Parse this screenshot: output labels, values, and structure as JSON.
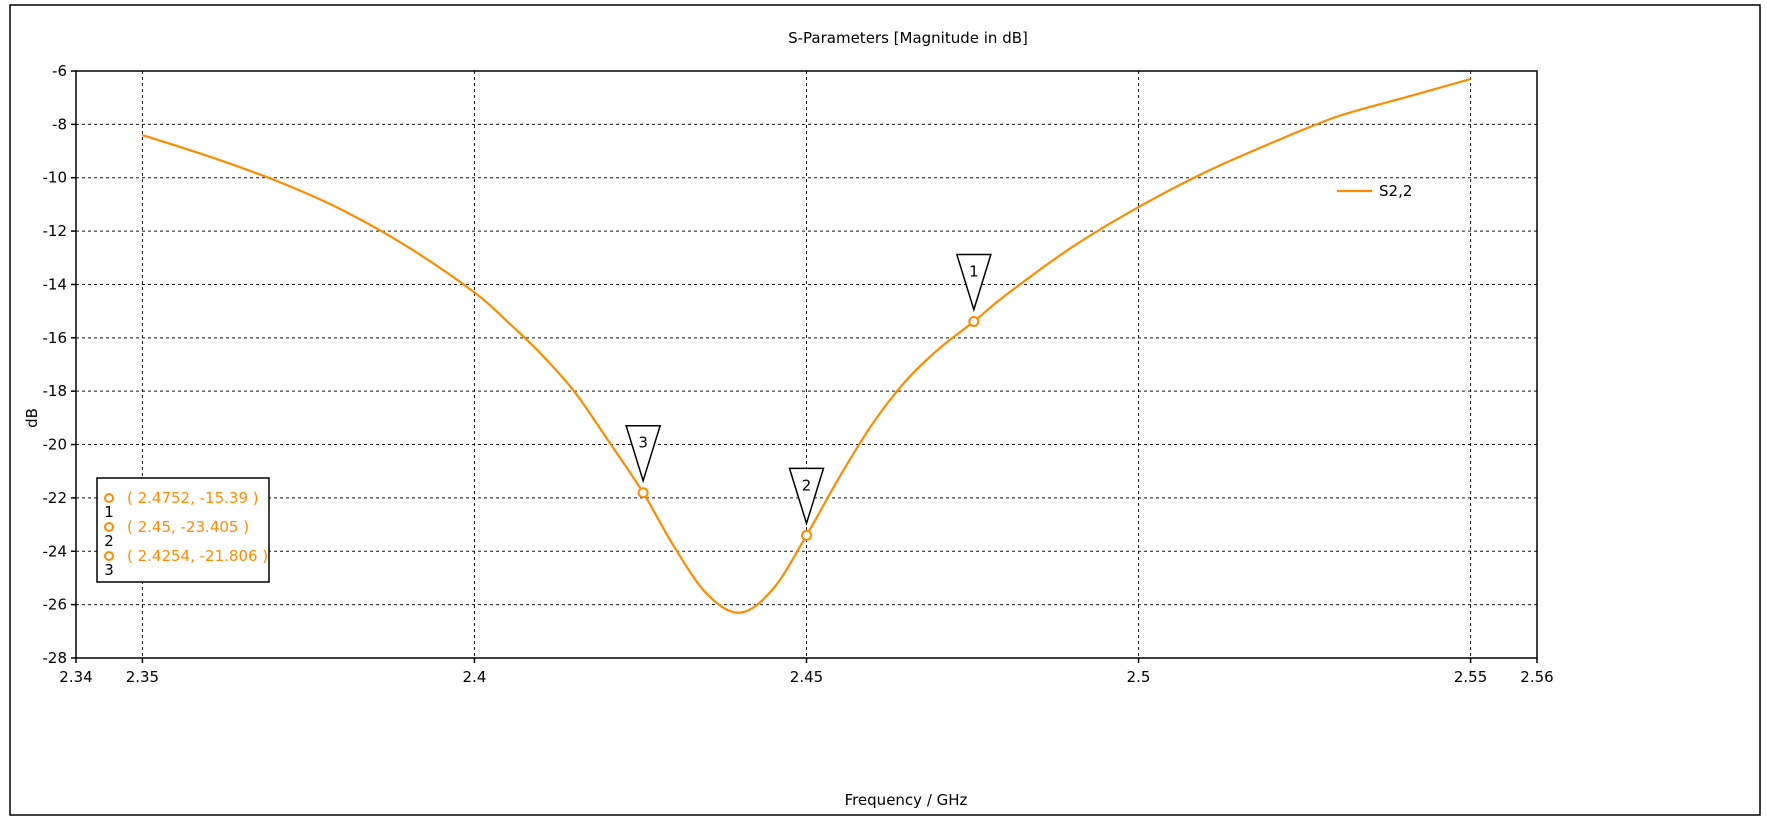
{
  "chart_data": {
    "type": "line",
    "title": "S-Parameters [Magnitude in dB]",
    "xlabel": "Frequency / GHz",
    "ylabel": "dB",
    "xlim": [
      2.34,
      2.56
    ],
    "ylim": [
      -28,
      -6
    ],
    "x_ticks": [
      "2.34",
      "2.35",
      "2.4",
      "2.45",
      "2.5",
      "2.55",
      "2.56"
    ],
    "x_tick_values": [
      2.34,
      2.35,
      2.4,
      2.45,
      2.5,
      2.55,
      2.56
    ],
    "y_ticks": [
      "-6",
      "-8",
      "-10",
      "-12",
      "-14",
      "-16",
      "-18",
      "-20",
      "-22",
      "-24",
      "-26",
      "-28"
    ],
    "y_tick_values": [
      -6,
      -8,
      -10,
      -12,
      -14,
      -16,
      -18,
      -20,
      -22,
      -24,
      -26,
      -28
    ],
    "grid": true,
    "legend_position": "top-right",
    "series": [
      {
        "name": "S2,2",
        "color": "#FF8C00",
        "x": [
          2.35,
          2.36,
          2.37,
          2.38,
          2.39,
          2.4,
          2.405,
          2.41,
          2.415,
          2.42,
          2.4254,
          2.43,
          2.435,
          2.44,
          2.445,
          2.45,
          2.455,
          2.46,
          2.465,
          2.47,
          2.4752,
          2.48,
          2.49,
          2.5,
          2.51,
          2.52,
          2.53,
          2.54,
          2.55
        ],
        "y": [
          -8.4,
          -9.2,
          -10.1,
          -11.2,
          -12.6,
          -14.3,
          -15.4,
          -16.6,
          -18.0,
          -19.8,
          -21.806,
          -23.8,
          -25.6,
          -26.3,
          -25.4,
          -23.405,
          -21.2,
          -19.2,
          -17.6,
          -16.4,
          -15.39,
          -14.4,
          -12.6,
          -11.1,
          -9.8,
          -8.7,
          -7.7,
          -7.0,
          -6.3
        ]
      }
    ],
    "markers": [
      {
        "id": "1",
        "x": 2.4752,
        "y": -15.39,
        "readout": "( 2.4752, -15.39 )"
      },
      {
        "id": "2",
        "x": 2.45,
        "y": -23.405,
        "readout": "( 2.45, -23.405 )"
      },
      {
        "id": "3",
        "x": 2.4254,
        "y": -21.806,
        "readout": "( 2.4254, -21.806 )"
      }
    ],
    "marker_color": "#FF8C00"
  }
}
